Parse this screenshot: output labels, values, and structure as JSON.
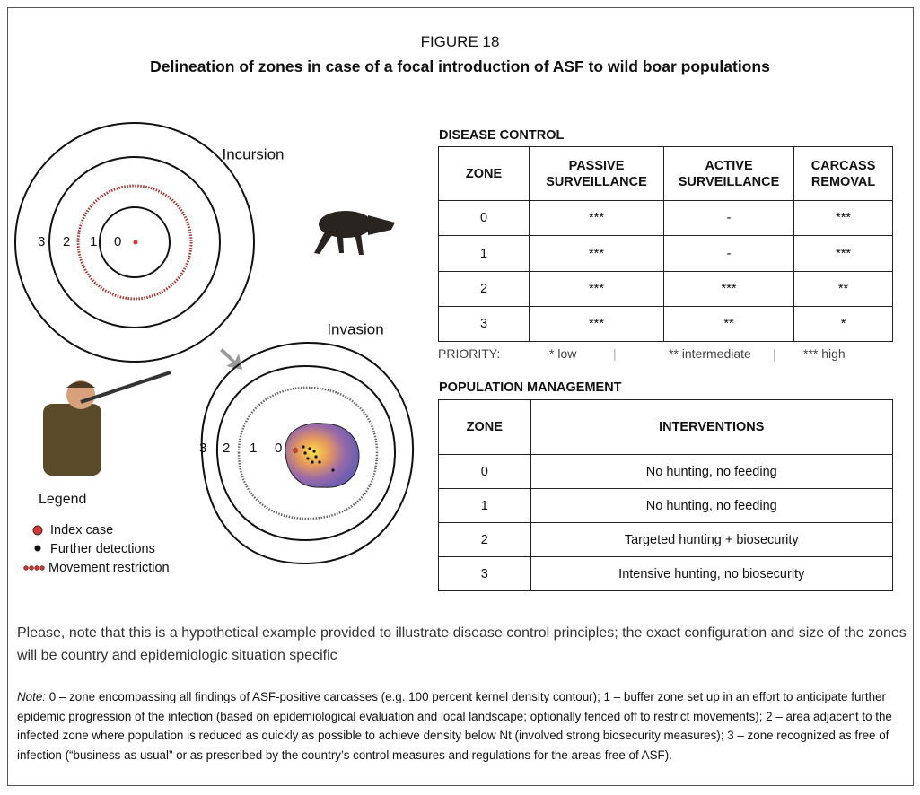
{
  "figure": {
    "label": "FIGURE 18",
    "title": "Delineation of zones in case of a focal introduction of ASF to wild boar populations"
  },
  "diagram": {
    "incursion": "Incursion",
    "invasion": "Invasion",
    "incursion_zones": [
      "3",
      "2",
      "1",
      "0"
    ],
    "invasion_zones": [
      "3",
      "2",
      "1",
      "0"
    ],
    "legend": {
      "title": "Legend",
      "items": [
        "Index case",
        "Further detections",
        "Movement restriction"
      ]
    }
  },
  "disease_control": {
    "title": "DISEASE CONTROL",
    "header": [
      "ZONE",
      "PASSIVE SURVEILLANCE",
      "ACTIVE SURVEILLANCE",
      "CARCASS REMOVAL"
    ],
    "rows": [
      [
        "0",
        "***",
        "-",
        "***"
      ],
      [
        "1",
        "***",
        "-",
        "***"
      ],
      [
        "2",
        "***",
        "***",
        "**"
      ],
      [
        "3",
        "***",
        "**",
        "*"
      ]
    ]
  },
  "priority": {
    "label": "PRIORITY:",
    "items": [
      "* low",
      "** intermediate",
      "*** high"
    ]
  },
  "population_management": {
    "title": "POPULATION MANAGEMENT",
    "header": [
      "ZONE",
      "INTERVENTIONS"
    ],
    "rows": [
      [
        "0",
        "No hunting, no feeding"
      ],
      [
        "1",
        "No hunting, no feeding"
      ],
      [
        "2",
        "Targeted hunting + biosecurity"
      ],
      [
        "3",
        "Intensive hunting, no biosecurity"
      ]
    ]
  },
  "caption": "Please, note that this is a hypothetical example provided to illustrate disease control principles; the exact configuration and size of the zones will be country and epidemiologic situation specific",
  "note": {
    "label": "Note:",
    "text": "0 – zone encompassing all findings of ASF-positive carcasses (e.g. 100 percent kernel density contour); 1 – buffer zone set up in an effort to anticipate further epidemic progression of the infection (based on epidemiological evaluation and local landscape; optionally fenced off to restrict movements); 2 – area adjacent to the infected zone where population is reduced as quickly as possible to achieve density below Nt (involved strong biosecurity measures); 3 – zone recognized as free of infection (“business as usual” or as prescribed by the country’s control measures and regulations for the areas free of ASF)."
  }
}
